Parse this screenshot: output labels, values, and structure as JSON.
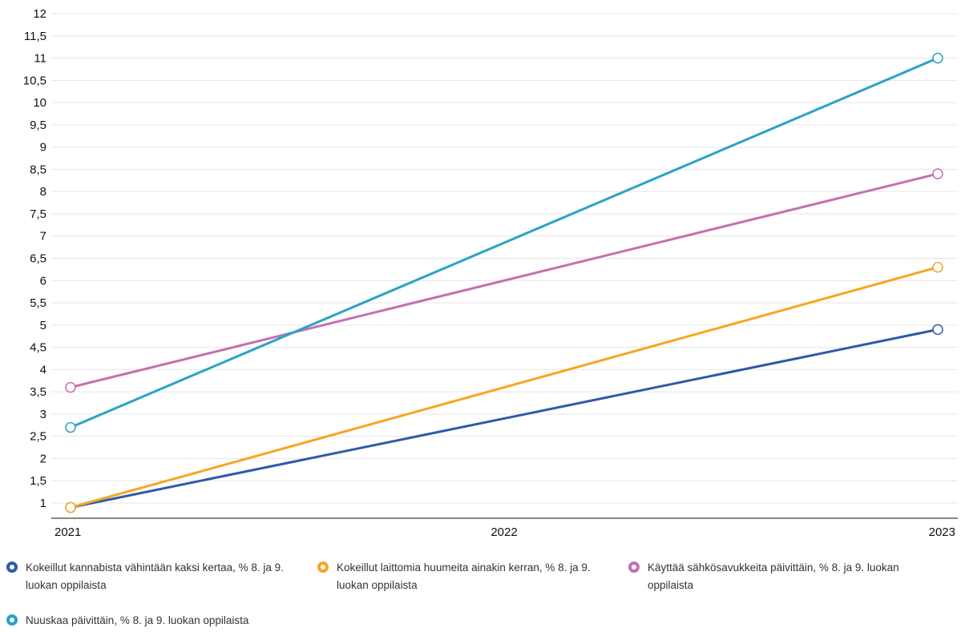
{
  "chart_data": {
    "type": "line",
    "x": [
      "2021",
      "2022",
      "2023"
    ],
    "ylim": [
      1,
      12
    ],
    "yticks": [
      "1",
      "1,5",
      "2",
      "2,5",
      "3",
      "3,5",
      "4",
      "4,5",
      "5",
      "5,5",
      "6",
      "6,5",
      "7",
      "7,5",
      "8",
      "8,5",
      "9",
      "9,5",
      "10",
      "10,5",
      "11",
      "11,5",
      "12"
    ],
    "grid": true,
    "legend_position": "bottom",
    "series": [
      {
        "name": "Kokeillut kannabista vähintään kaksi kertaa, % 8. ja 9. luokan oppilaista",
        "color": "#2e5aa8",
        "values": [
          0.9,
          null,
          4.9
        ]
      },
      {
        "name": "Kokeillut laittomia huumeita ainakin kerran, % 8. ja 9. luokan oppilaista",
        "color": "#f5a623",
        "values": [
          0.9,
          null,
          6.3
        ]
      },
      {
        "name": "Käyttää sähkösavukkeita päivittäin, % 8. ja 9. luokan oppilaista",
        "color": "#c46fb2",
        "values": [
          3.6,
          null,
          8.4
        ]
      },
      {
        "name": "Nuuskaa päivittäin, % 8. ja 9. luokan oppilaista",
        "color": "#2ba3c4",
        "values": [
          2.7,
          null,
          11.0
        ]
      }
    ]
  }
}
